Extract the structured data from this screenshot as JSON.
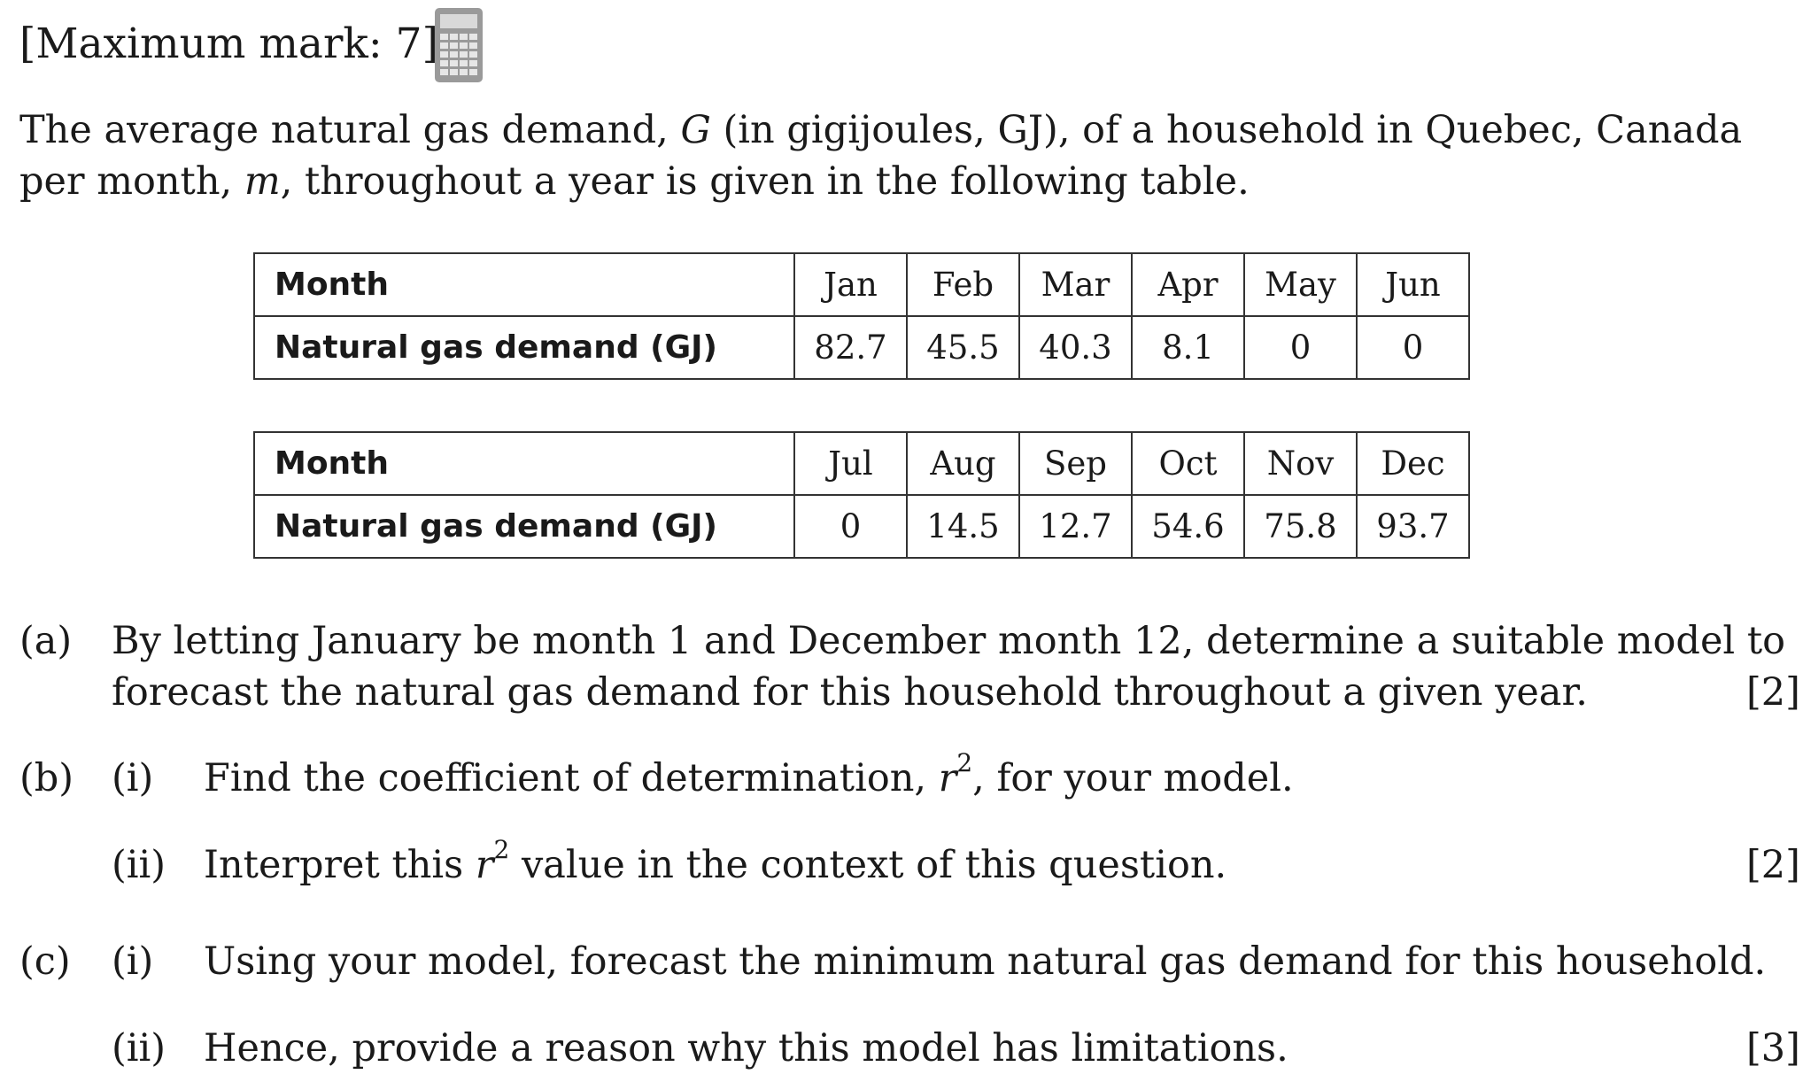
{
  "header": {
    "max_mark": "[Maximum mark: 7]",
    "calculator_icon": "calculator-icon"
  },
  "intro": {
    "line1_a": "The average natural gas demand,",
    "line1_var": "G",
    "line1_b": "(in gigijoules, GJ), of a household in Quebec, Canada",
    "line2_a": "per month,",
    "line2_var": "m",
    "line2_b": ", throughout a year is given in the following table."
  },
  "tables": [
    {
      "row1_label": "Month",
      "row2_label": "Natural gas demand (GJ)",
      "months": [
        "Jan",
        "Feb",
        "Mar",
        "Apr",
        "May",
        "Jun"
      ],
      "values": [
        "82.7",
        "45.5",
        "40.3",
        "8.1",
        "0",
        "0"
      ]
    },
    {
      "row1_label": "Month",
      "row2_label": "Natural gas demand (GJ)",
      "months": [
        "Jul",
        "Aug",
        "Sep",
        "Oct",
        "Nov",
        "Dec"
      ],
      "values": [
        "0",
        "14.5",
        "12.7",
        "54.6",
        "75.8",
        "93.7"
      ]
    }
  ],
  "questions": {
    "a": {
      "label": "(a)",
      "line1": "By letting January be month 1 and December month 12, determine a suitable model to",
      "line2": "forecast the natural gas demand for this household throughout a given year.",
      "marks": "[2]"
    },
    "b": {
      "label": "(b)",
      "i_label": "(i)",
      "i_text_a": "Find the coefficient of determination,",
      "i_var": "r",
      "i_sup": "2",
      "i_text_b": ", for your model.",
      "ii_label": "(ii)",
      "ii_text_a": "Interpret this",
      "ii_var": "r",
      "ii_sup": "2",
      "ii_text_b": "value in the context of this question.",
      "marks": "[2]"
    },
    "c": {
      "label": "(c)",
      "i_label": "(i)",
      "i_text": "Using your model, forecast the minimum natural gas demand for this household.",
      "ii_label": "(ii)",
      "ii_text": "Hence, provide a reason why this model has limitations.",
      "marks": "[3]"
    }
  }
}
